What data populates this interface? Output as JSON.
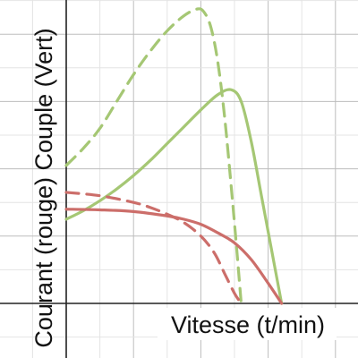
{
  "chart_data": {
    "type": "line",
    "title": "",
    "xlabel": "Vitesse (t/min)",
    "ylabel": "Courant (rouge) Couple (Vert)",
    "xlim": [
      0,
      7.5
    ],
    "ylim": [
      -0.5,
      9.5
    ],
    "grid": true,
    "legend": "none",
    "series": [
      {
        "color": "#a5c774",
        "dash": true,
        "points": [
          [
            0,
            4.1
          ],
          [
            0.5,
            4.6
          ],
          [
            1,
            5.2
          ],
          [
            1.5,
            6
          ],
          [
            2,
            6.8
          ],
          [
            2.5,
            7.5
          ],
          [
            3,
            8.1
          ],
          [
            3.5,
            8.55
          ],
          [
            3.9,
            8.75
          ],
          [
            4.1,
            8.65
          ],
          [
            4.3,
            8.2
          ],
          [
            4.5,
            7.2
          ],
          [
            4.7,
            5.6
          ],
          [
            4.9,
            3.5
          ],
          [
            5.05,
            1.8
          ],
          [
            5.2,
            0
          ]
        ]
      },
      {
        "color": "#a5c774",
        "dash": false,
        "points": [
          [
            0,
            2.5
          ],
          [
            0.5,
            2.75
          ],
          [
            1,
            3.05
          ],
          [
            1.5,
            3.4
          ],
          [
            2,
            3.8
          ],
          [
            2.5,
            4.25
          ],
          [
            3,
            4.75
          ],
          [
            3.5,
            5.25
          ],
          [
            4,
            5.75
          ],
          [
            4.5,
            6.2
          ],
          [
            4.9,
            6.35
          ],
          [
            5.2,
            6
          ],
          [
            5.5,
            4.8
          ],
          [
            5.8,
            3.2
          ],
          [
            6.1,
            1.6
          ],
          [
            6.4,
            0
          ]
        ]
      },
      {
        "color": "#cc6e6a",
        "dash": true,
        "points": [
          [
            0,
            3.3
          ],
          [
            1,
            3.2
          ],
          [
            2,
            3
          ],
          [
            2.5,
            2.85
          ],
          [
            3,
            2.65
          ],
          [
            3.5,
            2.4
          ],
          [
            4,
            2
          ],
          [
            4.4,
            1.5
          ],
          [
            4.7,
            0.9
          ],
          [
            5,
            0.3
          ],
          [
            5.2,
            0
          ]
        ]
      },
      {
        "color": "#cc6e6a",
        "dash": false,
        "points": [
          [
            0,
            2.8
          ],
          [
            1,
            2.78
          ],
          [
            2,
            2.73
          ],
          [
            3,
            2.6
          ],
          [
            3.5,
            2.5
          ],
          [
            4,
            2.35
          ],
          [
            4.5,
            2.1
          ],
          [
            5,
            1.8
          ],
          [
            5.5,
            1.3
          ],
          [
            6,
            0.6
          ],
          [
            6.4,
            0
          ]
        ]
      }
    ]
  }
}
